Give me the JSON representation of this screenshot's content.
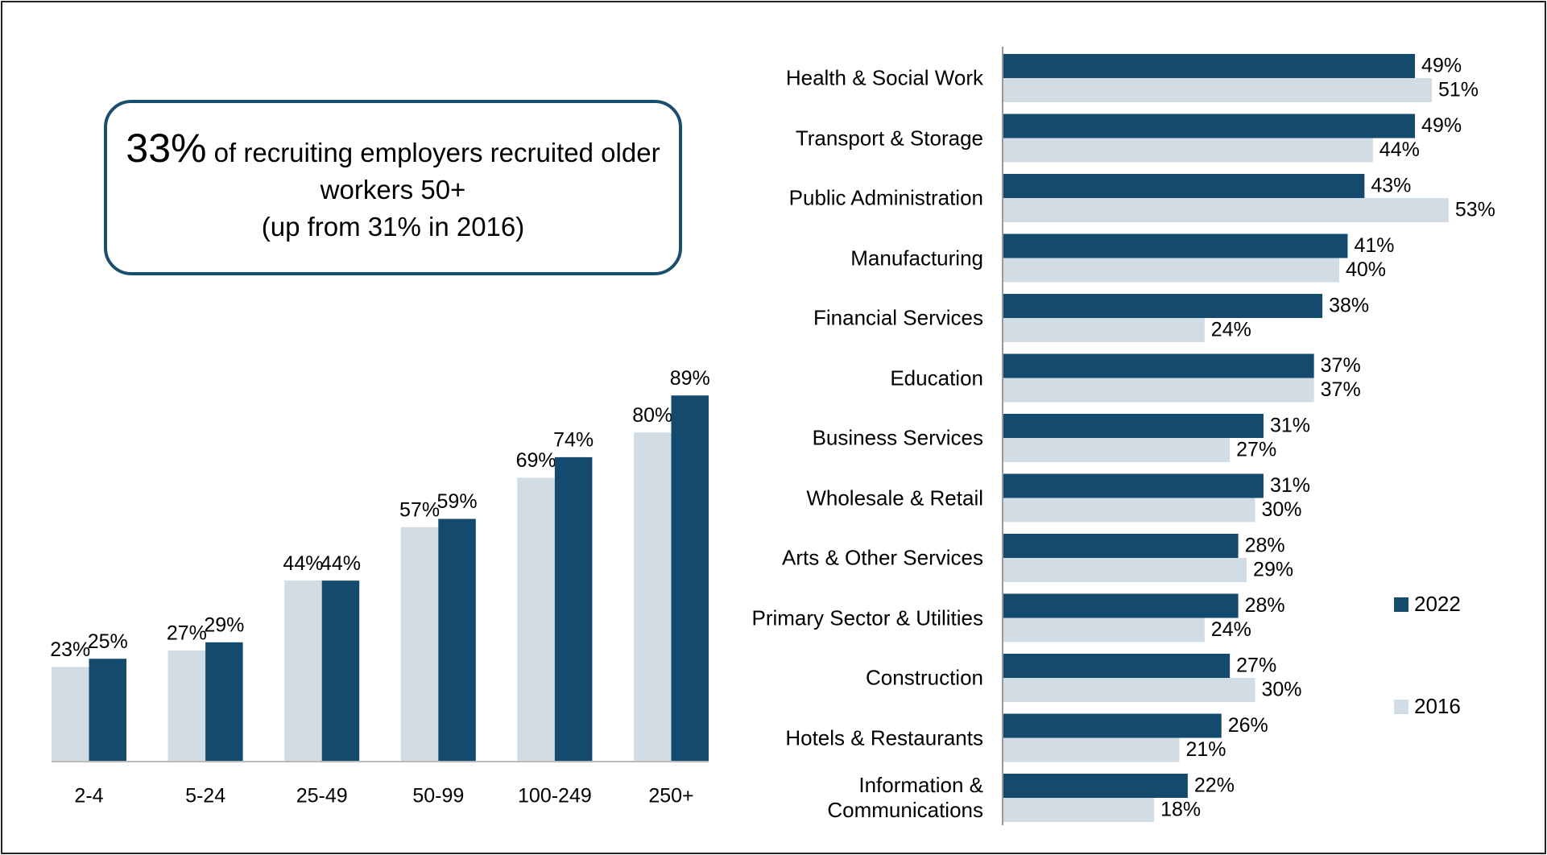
{
  "callout": {
    "highlight": "33%",
    "text": "of recruiting employers recruited older workers 50+",
    "note": "(up from 31% in 2016)"
  },
  "chart_data": [
    {
      "type": "bar",
      "categories": [
        "2-4",
        "5-24",
        "25-49",
        "50-99",
        "100-249",
        "250+"
      ],
      "series": [
        {
          "name": "2016",
          "color": "#d1dce4",
          "values": [
            23,
            27,
            44,
            57,
            69,
            80
          ],
          "value_labels": [
            "23%",
            "27%",
            "44%",
            "57%",
            "69%",
            "80%"
          ]
        },
        {
          "name": "2022",
          "color": "#134a6e",
          "values": [
            25,
            29,
            44,
            59,
            74,
            89
          ],
          "value_labels": [
            "25%",
            "29%",
            "44%",
            "59%",
            "74%",
            "89%"
          ]
        }
      ]
    },
    {
      "type": "hbar",
      "categories": [
        "Health & Social Work",
        "Transport & Storage",
        "Public Administration",
        "Manufacturing",
        "Financial Services",
        "Education",
        "Business Services",
        "Wholesale & Retail",
        "Arts & Other Services",
        "Primary Sector & Utilities",
        "Construction",
        "Hotels & Restaurants",
        "Information & Communications"
      ],
      "series": [
        {
          "name": "2022",
          "color": "#134a6e",
          "values": [
            49,
            49,
            43,
            41,
            38,
            37,
            31,
            31,
            28,
            28,
            27,
            26,
            22
          ],
          "value_labels": [
            "49%",
            "49%",
            "43%",
            "41%",
            "38%",
            "37%",
            "31%",
            "31%",
            "28%",
            "28%",
            "27%",
            "26%",
            "22%"
          ]
        },
        {
          "name": "2016",
          "color": "#d1dce4",
          "values": [
            51,
            44,
            53,
            40,
            24,
            37,
            27,
            30,
            29,
            24,
            30,
            21,
            18
          ],
          "value_labels": [
            "51%",
            "44%",
            "53%",
            "40%",
            "24%",
            "37%",
            "27%",
            "30%",
            "29%",
            "24%",
            "30%",
            "21%",
            "18%"
          ]
        }
      ],
      "legend": "right"
    }
  ]
}
